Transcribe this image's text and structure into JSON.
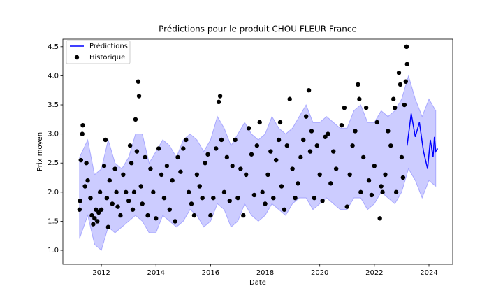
{
  "chart_data": {
    "type": "line",
    "title": "Prédictions pour le produit CHOU FLEUR France",
    "x_label": "Date",
    "y_label": "Prix moyen",
    "xlim": [
      2010.59,
      2024.87
    ],
    "ylim": [
      0.76,
      4.63
    ],
    "xticks": [
      2012,
      2014,
      2016,
      2018,
      2020,
      2022,
      2024
    ],
    "yticks": [
      {
        "value": 1,
        "label": "1.0"
      },
      {
        "value": 1.5,
        "label": "1.5"
      },
      {
        "value": 2,
        "label": "2.0"
      },
      {
        "value": 2.5,
        "label": "2.5"
      },
      {
        "value": 3,
        "label": "3.0"
      },
      {
        "value": 3.5,
        "label": "3.5"
      },
      {
        "value": 4,
        "label": "4.0"
      },
      {
        "value": 4.5,
        "label": "4.5"
      }
    ],
    "legend": "upper left",
    "band": {
      "color": "#0000ff",
      "x": [
        2011.2,
        2011.5,
        2011.75,
        2012.0,
        2012.25,
        2012.5,
        2012.75,
        2013.0,
        2013.25,
        2013.5,
        2013.75,
        2014.0,
        2014.25,
        2014.5,
        2014.75,
        2015.0,
        2015.25,
        2015.5,
        2015.75,
        2016.0,
        2016.25,
        2016.5,
        2016.75,
        2017.0,
        2017.25,
        2017.5,
        2017.75,
        2018.0,
        2018.25,
        2018.5,
        2018.75,
        2019.0,
        2019.25,
        2019.5,
        2019.75,
        2020.0,
        2020.25,
        2020.5,
        2020.75,
        2021.0,
        2021.25,
        2021.5,
        2021.75,
        2022.0,
        2022.25,
        2022.5,
        2022.75,
        2023.0,
        2023.25,
        2023.5,
        2023.75,
        2024.0,
        2024.25
      ],
      "lower": [
        1.2,
        1.6,
        1.1,
        1.0,
        1.4,
        1.3,
        1.4,
        1.5,
        1.6,
        1.5,
        1.3,
        1.3,
        1.6,
        1.5,
        1.4,
        1.5,
        1.7,
        1.6,
        1.4,
        1.5,
        1.8,
        1.7,
        1.4,
        1.5,
        1.8,
        1.6,
        1.5,
        1.6,
        1.8,
        1.7,
        1.6,
        1.8,
        1.9,
        1.9,
        1.7,
        1.8,
        1.9,
        1.8,
        1.7,
        1.7,
        1.9,
        1.9,
        1.7,
        1.8,
        2.0,
        1.9,
        1.8,
        2.0,
        2.4,
        2.2,
        1.9,
        2.2,
        2.1
      ],
      "upper": [
        2.6,
        2.9,
        2.3,
        2.4,
        2.9,
        2.5,
        2.4,
        2.6,
        3.0,
        3.0,
        2.5,
        2.7,
        2.9,
        2.8,
        2.6,
        2.9,
        3.0,
        2.9,
        2.7,
        2.9,
        3.3,
        3.1,
        2.8,
        3.0,
        3.2,
        3.0,
        2.9,
        3.0,
        3.3,
        3.1,
        3.0,
        3.1,
        3.3,
        3.5,
        3.2,
        3.2,
        3.3,
        3.2,
        3.1,
        3.1,
        3.4,
        3.5,
        3.2,
        3.2,
        3.4,
        3.3,
        3.4,
        3.6,
        4.0,
        3.6,
        3.3,
        3.6,
        3.4
      ]
    },
    "series": [
      {
        "name": "Prédictions",
        "type": "line",
        "color": "#0000ff",
        "x": [
          2023.2,
          2023.35,
          2023.5,
          2023.65,
          2023.8,
          2023.95,
          2024.05,
          2024.15,
          2024.2,
          2024.25,
          2024.32
        ],
        "values": [
          2.8,
          3.35,
          2.95,
          3.2,
          2.7,
          2.4,
          2.9,
          2.6,
          2.95,
          2.7,
          2.75
        ]
      },
      {
        "name": "Historique",
        "type": "scatter",
        "color": "#000000",
        "x": [
          2011.2,
          2011.22,
          2011.25,
          2011.3,
          2011.32,
          2011.4,
          2011.45,
          2011.5,
          2011.6,
          2011.65,
          2011.7,
          2011.75,
          2011.8,
          2011.85,
          2011.9,
          2011.95,
          2012.0,
          2012.1,
          2012.15,
          2012.2,
          2012.25,
          2012.3,
          2012.4,
          2012.5,
          2012.55,
          2012.6,
          2012.7,
          2012.8,
          2012.9,
          2013.0,
          2013.05,
          2013.1,
          2013.15,
          2013.2,
          2013.25,
          2013.3,
          2013.35,
          2013.38,
          2013.45,
          2013.5,
          2013.6,
          2013.7,
          2013.8,
          2013.9,
          2014.0,
          2014.1,
          2014.2,
          2014.3,
          2014.4,
          2014.5,
          2014.6,
          2014.7,
          2014.8,
          2014.9,
          2015.0,
          2015.1,
          2015.2,
          2015.3,
          2015.4,
          2015.5,
          2015.6,
          2015.7,
          2015.8,
          2015.9,
          2016.0,
          2016.1,
          2016.2,
          2016.3,
          2016.35,
          2016.4,
          2016.5,
          2016.6,
          2016.7,
          2016.8,
          2016.9,
          2017.0,
          2017.1,
          2017.2,
          2017.3,
          2017.4,
          2017.5,
          2017.6,
          2017.7,
          2017.8,
          2017.9,
          2018.0,
          2018.1,
          2018.2,
          2018.3,
          2018.4,
          2018.5,
          2018.55,
          2018.6,
          2018.7,
          2018.8,
          2018.9,
          2019.0,
          2019.1,
          2019.2,
          2019.3,
          2019.4,
          2019.5,
          2019.6,
          2019.65,
          2019.7,
          2019.8,
          2019.9,
          2020.0,
          2020.1,
          2020.2,
          2020.3,
          2020.4,
          2020.5,
          2020.6,
          2020.8,
          2020.9,
          2021.0,
          2021.1,
          2021.2,
          2021.3,
          2021.4,
          2021.45,
          2021.5,
          2021.6,
          2021.7,
          2021.8,
          2021.9,
          2022.0,
          2022.1,
          2022.2,
          2022.25,
          2022.3,
          2022.4,
          2022.5,
          2022.6,
          2022.7,
          2022.75,
          2022.8,
          2022.9,
          2022.95,
          2023.0,
          2023.05,
          2023.1,
          2023.15,
          2023.18,
          2023.2
        ],
        "values": [
          1.7,
          1.85,
          2.55,
          3.0,
          3.15,
          2.1,
          2.5,
          2.2,
          1.9,
          1.6,
          1.45,
          1.55,
          1.7,
          1.5,
          1.65,
          2.0,
          1.7,
          2.45,
          2.9,
          1.9,
          1.4,
          2.2,
          1.8,
          2.4,
          2.0,
          1.75,
          1.6,
          2.3,
          2.0,
          1.85,
          2.8,
          2.5,
          1.7,
          2.0,
          3.25,
          2.7,
          3.9,
          3.65,
          2.1,
          1.8,
          2.6,
          1.6,
          2.4,
          2.0,
          1.55,
          2.75,
          2.3,
          1.9,
          2.45,
          1.7,
          2.2,
          1.5,
          2.6,
          2.35,
          2.75,
          2.9,
          2.0,
          1.8,
          1.6,
          2.3,
          2.1,
          1.9,
          2.5,
          2.65,
          1.6,
          1.9,
          2.75,
          3.55,
          3.65,
          2.9,
          2.0,
          2.6,
          1.85,
          2.45,
          2.9,
          1.9,
          2.4,
          1.6,
          2.3,
          3.1,
          2.65,
          1.95,
          2.8,
          3.2,
          2.0,
          1.8,
          2.3,
          2.7,
          1.9,
          2.55,
          2.9,
          3.2,
          2.1,
          1.7,
          2.8,
          3.6,
          2.4,
          1.9,
          2.15,
          2.6,
          2.9,
          3.3,
          3.75,
          2.7,
          3.05,
          1.9,
          2.8,
          2.3,
          1.85,
          2.95,
          3.0,
          2.15,
          2.7,
          2.4,
          3.15,
          3.45,
          1.75,
          2.3,
          2.8,
          3.05,
          3.85,
          3.6,
          2.0,
          2.6,
          3.45,
          2.2,
          1.95,
          2.45,
          3.2,
          1.55,
          2.1,
          2.0,
          2.3,
          3.05,
          2.8,
          3.6,
          3.45,
          2.0,
          4.05,
          3.85,
          2.6,
          2.25,
          3.5,
          3.9,
          4.5,
          4.2
        ]
      }
    ]
  }
}
